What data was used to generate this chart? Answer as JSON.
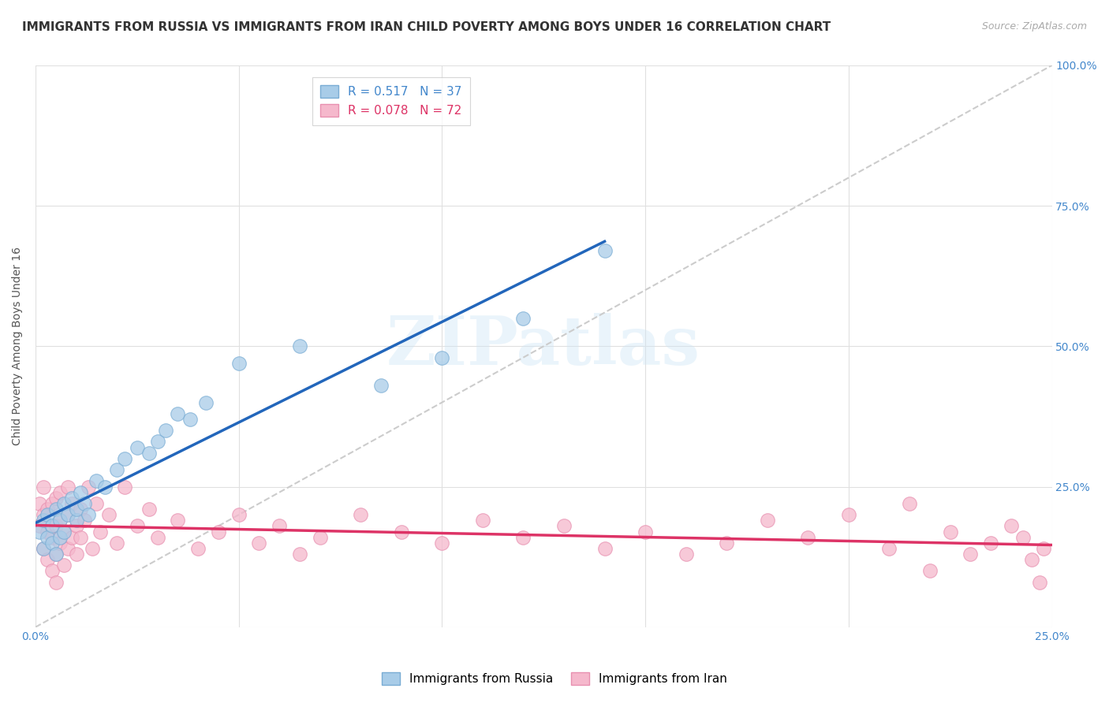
{
  "title": "IMMIGRANTS FROM RUSSIA VS IMMIGRANTS FROM IRAN CHILD POVERTY AMONG BOYS UNDER 16 CORRELATION CHART",
  "source": "Source: ZipAtlas.com",
  "ylabel": "Child Poverty Among Boys Under 16",
  "xlim": [
    0.0,
    0.25
  ],
  "ylim": [
    0.0,
    1.0
  ],
  "russia_color": "#a8cce8",
  "iran_color": "#f5b8cc",
  "russia_edge": "#7aadd4",
  "iran_edge": "#e890b0",
  "russia_R": 0.517,
  "russia_N": 37,
  "iran_R": 0.078,
  "iran_N": 72,
  "legend_russia": "Immigrants from Russia",
  "legend_iran": "Immigrants from Iran",
  "russia_scatter_x": [
    0.001,
    0.002,
    0.002,
    0.003,
    0.003,
    0.004,
    0.004,
    0.005,
    0.005,
    0.006,
    0.006,
    0.007,
    0.007,
    0.008,
    0.009,
    0.01,
    0.01,
    0.011,
    0.012,
    0.013,
    0.015,
    0.017,
    0.02,
    0.022,
    0.025,
    0.028,
    0.03,
    0.032,
    0.035,
    0.038,
    0.042,
    0.05,
    0.065,
    0.085,
    0.1,
    0.12,
    0.14
  ],
  "russia_scatter_y": [
    0.17,
    0.19,
    0.14,
    0.16,
    0.2,
    0.15,
    0.18,
    0.21,
    0.13,
    0.16,
    0.19,
    0.22,
    0.17,
    0.2,
    0.23,
    0.19,
    0.21,
    0.24,
    0.22,
    0.2,
    0.26,
    0.25,
    0.28,
    0.3,
    0.32,
    0.31,
    0.33,
    0.35,
    0.38,
    0.37,
    0.4,
    0.47,
    0.5,
    0.43,
    0.48,
    0.55,
    0.67
  ],
  "iran_scatter_x": [
    0.001,
    0.001,
    0.002,
    0.002,
    0.002,
    0.003,
    0.003,
    0.003,
    0.004,
    0.004,
    0.004,
    0.005,
    0.005,
    0.005,
    0.005,
    0.006,
    0.006,
    0.006,
    0.007,
    0.007,
    0.008,
    0.008,
    0.008,
    0.009,
    0.009,
    0.01,
    0.01,
    0.011,
    0.011,
    0.012,
    0.013,
    0.014,
    0.015,
    0.016,
    0.018,
    0.02,
    0.022,
    0.025,
    0.028,
    0.03,
    0.035,
    0.04,
    0.045,
    0.05,
    0.055,
    0.06,
    0.065,
    0.07,
    0.08,
    0.09,
    0.1,
    0.11,
    0.12,
    0.13,
    0.14,
    0.15,
    0.16,
    0.17,
    0.18,
    0.19,
    0.2,
    0.21,
    0.215,
    0.22,
    0.225,
    0.23,
    0.235,
    0.24,
    0.243,
    0.245,
    0.247,
    0.248
  ],
  "iran_scatter_y": [
    0.18,
    0.22,
    0.14,
    0.2,
    0.25,
    0.12,
    0.17,
    0.21,
    0.1,
    0.16,
    0.22,
    0.13,
    0.18,
    0.23,
    0.08,
    0.15,
    0.19,
    0.24,
    0.11,
    0.17,
    0.2,
    0.14,
    0.25,
    0.16,
    0.22,
    0.18,
    0.13,
    0.21,
    0.16,
    0.19,
    0.25,
    0.14,
    0.22,
    0.17,
    0.2,
    0.15,
    0.25,
    0.18,
    0.21,
    0.16,
    0.19,
    0.14,
    0.17,
    0.2,
    0.15,
    0.18,
    0.13,
    0.16,
    0.2,
    0.17,
    0.15,
    0.19,
    0.16,
    0.18,
    0.14,
    0.17,
    0.13,
    0.15,
    0.19,
    0.16,
    0.2,
    0.14,
    0.22,
    0.1,
    0.17,
    0.13,
    0.15,
    0.18,
    0.16,
    0.12,
    0.08,
    0.14
  ],
  "watermark": "ZIPatlas",
  "title_fontsize": 11,
  "axis_label_fontsize": 10,
  "tick_fontsize": 10,
  "legend_fontsize": 11,
  "ref_line_slope": 4.0
}
